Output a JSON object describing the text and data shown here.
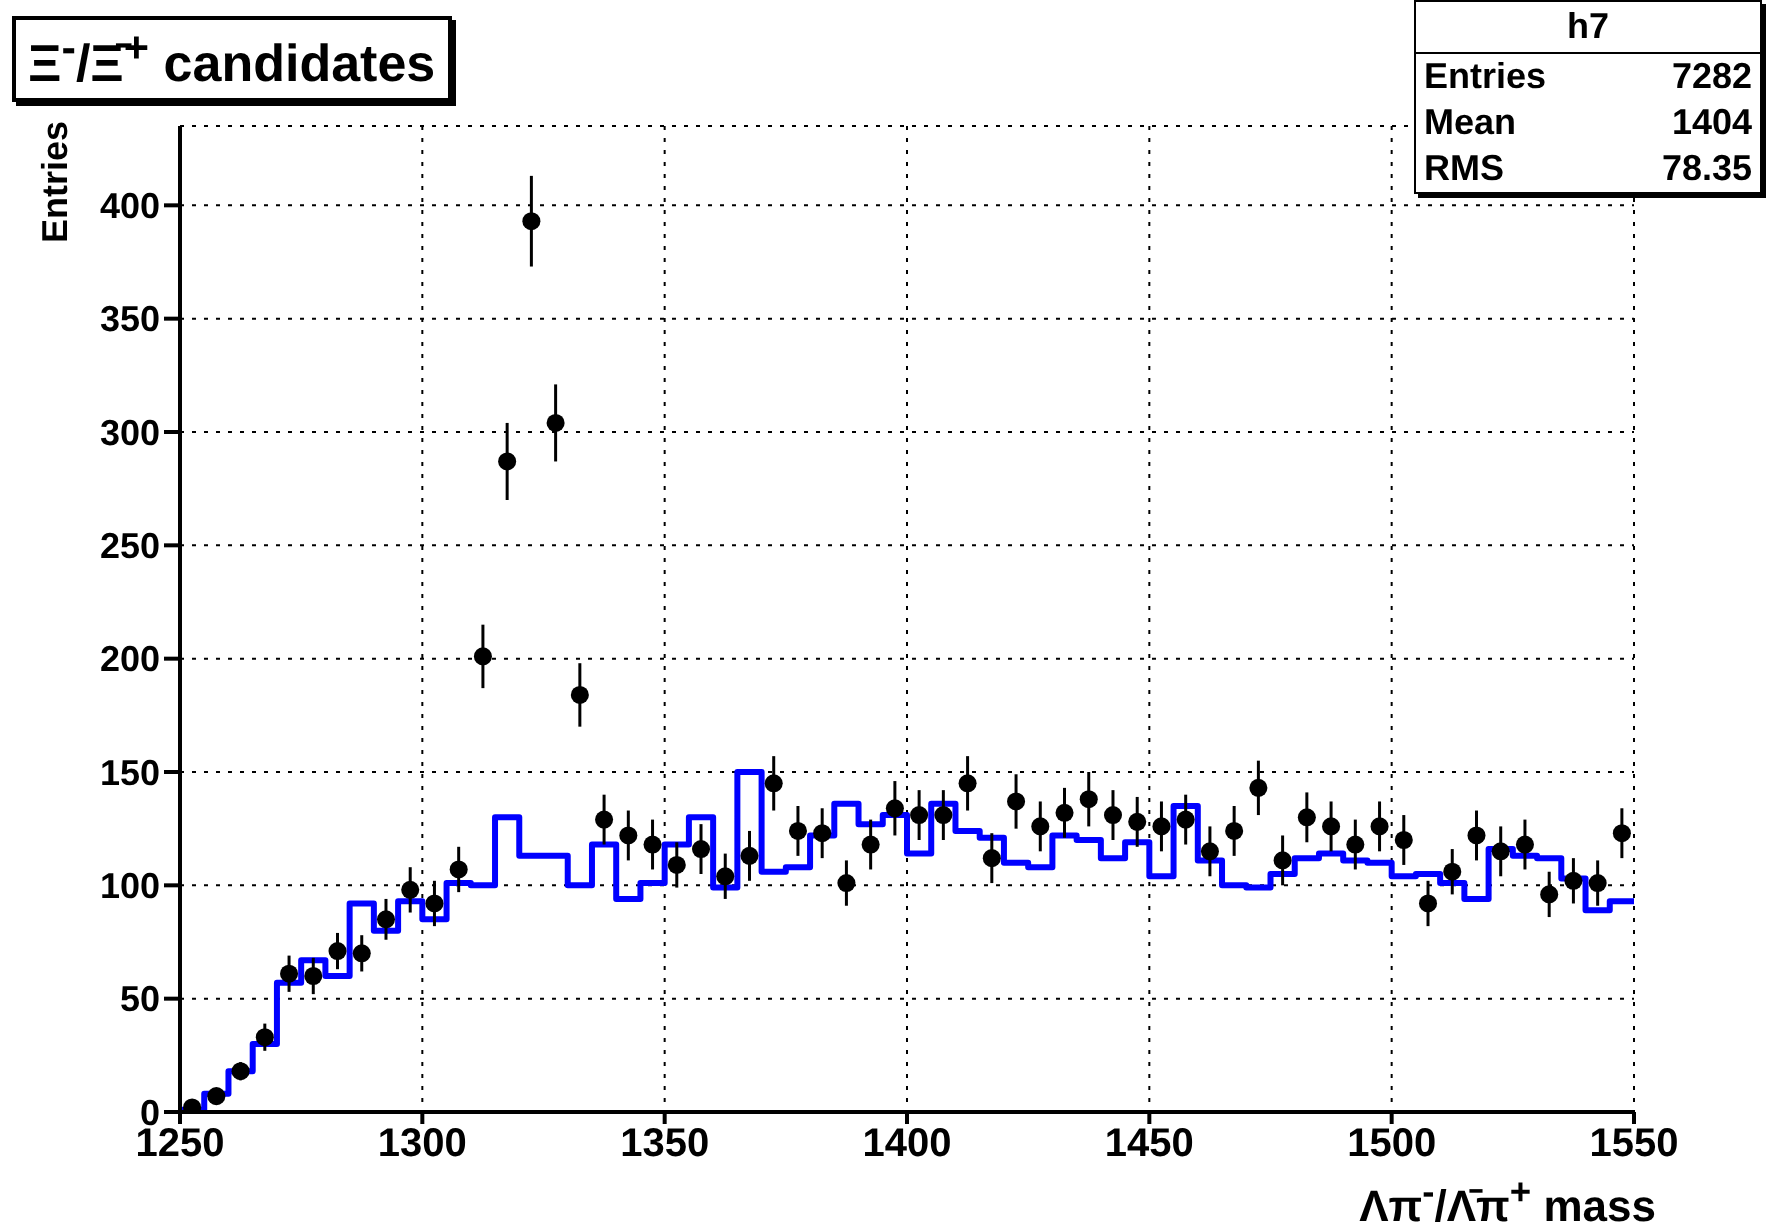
{
  "chart_data": {
    "type": "histogram",
    "title": "Ξ$^{-}$/Ξ̄$^{+}$ candidates",
    "xlabel": "Λπ$^{-}$/Λ̄π$^{+}$ mass",
    "ylabel": "Entries",
    "annotations": [
      "h7",
      "Entries",
      "7282",
      "Mean",
      "1404",
      "RMS",
      "78.35"
    ],
    "xlim": [
      1250,
      1550
    ],
    "xticks": [
      1250,
      1300,
      1350,
      1400,
      1450,
      1500,
      1550
    ],
    "ylim": [
      0,
      435
    ],
    "yticks": [
      0,
      50,
      100,
      150,
      200,
      250,
      300,
      350,
      400
    ],
    "grid": true,
    "series": [
      {
        "type": "histogram",
        "color": "#0000ff",
        "bins": [
          1250,
          1255,
          1260,
          1265,
          1270,
          1275,
          1280,
          1285,
          1290,
          1295,
          1300,
          1305,
          1310,
          1315,
          1320,
          1325,
          1330,
          1335,
          1340,
          1345,
          1350,
          1355,
          1360,
          1365,
          1370,
          1375,
          1380,
          1385,
          1390,
          1395,
          1400,
          1405,
          1410,
          1415,
          1420,
          1425,
          1430,
          1435,
          1440,
          1445,
          1450,
          1455,
          1460,
          1465,
          1470,
          1475,
          1480,
          1485,
          1490,
          1495,
          1500,
          1505,
          1510,
          1515,
          1520,
          1525,
          1530,
          1535,
          1540,
          1545,
          1550
        ],
        "values": [
          1,
          8,
          18,
          30,
          57,
          67,
          60,
          92,
          80,
          93,
          85,
          101,
          100,
          130,
          113,
          113,
          100,
          118,
          94,
          101,
          118,
          130,
          99,
          150,
          106,
          108,
          122,
          136,
          127,
          131,
          114,
          136,
          124,
          121,
          110,
          108,
          122,
          120,
          112,
          119,
          104,
          135,
          111,
          100,
          99,
          105,
          112,
          114,
          111,
          110,
          104,
          105,
          101,
          94,
          116,
          113,
          112,
          103,
          89,
          93
        ]
      },
      {
        "type": "scatter",
        "color": "#000000",
        "marker": "circle",
        "x": [
          1252.5,
          1257.5,
          1262.5,
          1267.5,
          1272.5,
          1277.5,
          1282.5,
          1287.5,
          1292.5,
          1297.5,
          1302.5,
          1307.5,
          1312.5,
          1317.5,
          1322.5,
          1327.5,
          1332.5,
          1337.5,
          1342.5,
          1347.5,
          1352.5,
          1357.5,
          1362.5,
          1367.5,
          1372.5,
          1377.5,
          1382.5,
          1387.5,
          1392.5,
          1397.5,
          1402.5,
          1407.5,
          1412.5,
          1417.5,
          1422.5,
          1427.5,
          1432.5,
          1437.5,
          1442.5,
          1447.5,
          1452.5,
          1457.5,
          1462.5,
          1467.5,
          1472.5,
          1477.5,
          1482.5,
          1487.5,
          1492.5,
          1497.5,
          1502.5,
          1507.5,
          1512.5,
          1517.5,
          1522.5,
          1527.5,
          1532.5,
          1537.5,
          1542.5,
          1547.5
        ],
        "values": [
          2,
          7,
          18,
          33,
          61,
          60,
          71,
          70,
          85,
          98,
          92,
          107,
          201,
          287,
          393,
          304,
          184,
          129,
          122,
          118,
          109,
          116,
          104,
          113,
          145,
          124,
          123,
          101,
          118,
          134,
          131,
          131,
          145,
          112,
          137,
          126,
          132,
          138,
          131,
          128,
          126,
          129,
          115,
          124,
          143,
          111,
          130,
          126,
          118,
          126,
          120,
          92,
          106,
          122,
          115,
          118,
          96,
          102,
          101,
          123
        ],
        "errors": [
          1,
          3,
          4,
          6,
          8,
          8,
          8,
          8,
          9,
          10,
          10,
          10,
          14,
          17,
          20,
          17,
          14,
          11,
          11,
          11,
          10,
          11,
          10,
          11,
          12,
          11,
          11,
          10,
          11,
          12,
          11,
          11,
          12,
          11,
          12,
          11,
          11,
          12,
          11,
          11,
          11,
          11,
          11,
          11,
          12,
          11,
          11,
          11,
          11,
          11,
          11,
          10,
          10,
          11,
          11,
          11,
          10,
          10,
          10,
          11
        ]
      }
    ]
  }
}
